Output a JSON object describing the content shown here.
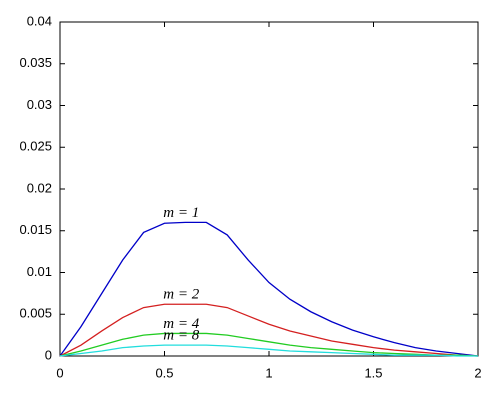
{
  "chart_data": {
    "type": "line",
    "x": [
      0,
      0.1,
      0.2,
      0.3,
      0.4,
      0.5,
      0.6,
      0.7,
      0.8,
      0.9,
      1.0,
      1.1,
      1.2,
      1.3,
      1.4,
      1.5,
      1.6,
      1.7,
      1.8,
      1.9,
      2.0
    ],
    "series": [
      {
        "name": "m = 1",
        "color": "#0000c8",
        "values": [
          0,
          0.0035,
          0.0075,
          0.0115,
          0.0148,
          0.0159,
          0.016,
          0.016,
          0.0145,
          0.0115,
          0.0088,
          0.0068,
          0.0053,
          0.0041,
          0.0031,
          0.0023,
          0.0016,
          0.001,
          0.0006,
          0.0003,
          0
        ]
      },
      {
        "name": "m = 2",
        "color": "#d42020",
        "values": [
          0,
          0.0013,
          0.003,
          0.0046,
          0.0058,
          0.0062,
          0.0062,
          0.0062,
          0.0058,
          0.0048,
          0.0038,
          0.003,
          0.0024,
          0.0018,
          0.0014,
          0.001,
          0.0007,
          0.0005,
          0.0003,
          0.0001,
          0
        ]
      },
      {
        "name": "m = 4",
        "color": "#22cc22",
        "values": [
          0,
          0.0006,
          0.0013,
          0.002,
          0.0025,
          0.0027,
          0.0027,
          0.0027,
          0.0025,
          0.0021,
          0.0017,
          0.0013,
          0.001,
          0.0008,
          0.0006,
          0.0004,
          0.0003,
          0.0002,
          0.0001,
          0.0001,
          0
        ]
      },
      {
        "name": "m = 8",
        "color": "#22dddd",
        "values": [
          0,
          0.0003,
          0.0006,
          0.001,
          0.0012,
          0.0013,
          0.0013,
          0.0013,
          0.0012,
          0.001,
          0.0008,
          0.0006,
          0.0005,
          0.0004,
          0.0003,
          0.0002,
          0.0001,
          0.0001,
          0.0001,
          0,
          0
        ]
      }
    ],
    "xlim": [
      0,
      2
    ],
    "xticks": [
      0,
      0.5,
      1,
      1.5,
      2
    ],
    "ylim": [
      0,
      0.04
    ],
    "yticks": [
      0,
      0.005,
      0.01,
      0.015,
      0.02,
      0.025,
      0.03,
      0.035,
      0.04
    ],
    "grid": false
  }
}
